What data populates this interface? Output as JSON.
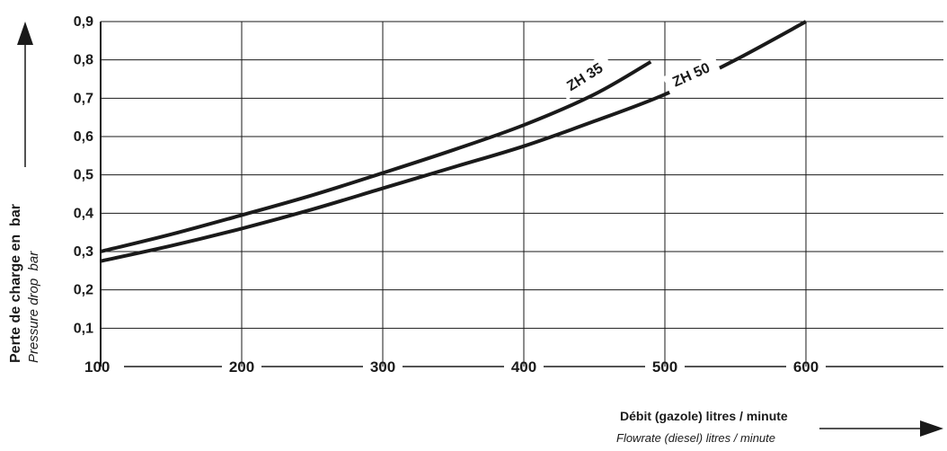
{
  "chart_data": {
    "type": "line",
    "xlabel": "Débit (gazole) litres / minute",
    "xlabel_sub": "Flowrate (diesel) litres / minute",
    "ylabel": "Perte de charge en  bar",
    "ylabel_sub": "Pressure drop  bar",
    "xlim": [
      100,
      600
    ],
    "ylim": [
      0,
      0.9
    ],
    "x_ticks": [
      "100",
      "200",
      "300",
      "400",
      "500",
      "600"
    ],
    "x_tick_values": [
      100,
      200,
      300,
      400,
      500,
      600
    ],
    "y_ticks": [
      "0,1",
      "0,2",
      "0,3",
      "0,4",
      "0,5",
      "0,6",
      "0,7",
      "0,8",
      "0,9"
    ],
    "y_tick_values": [
      0.1,
      0.2,
      0.3,
      0.4,
      0.5,
      0.6,
      0.7,
      0.8,
      0.9
    ],
    "grid": true,
    "series": [
      {
        "name": "ZH 35",
        "x": [
          100,
          150,
          200,
          250,
          300,
          350,
          400,
          450,
          490
        ],
        "y": [
          0.3,
          0.345,
          0.395,
          0.447,
          0.505,
          0.565,
          0.63,
          0.71,
          0.795
        ]
      },
      {
        "name": "ZH 50",
        "x": [
          100,
          150,
          200,
          250,
          300,
          350,
          400,
          450,
          500,
          550,
          600
        ],
        "y": [
          0.275,
          0.315,
          0.36,
          0.41,
          0.465,
          0.52,
          0.575,
          0.64,
          0.71,
          0.8,
          0.9
        ]
      }
    ],
    "colors": {
      "line": "#1a1a1a",
      "grid": "#1a1a1a"
    }
  }
}
